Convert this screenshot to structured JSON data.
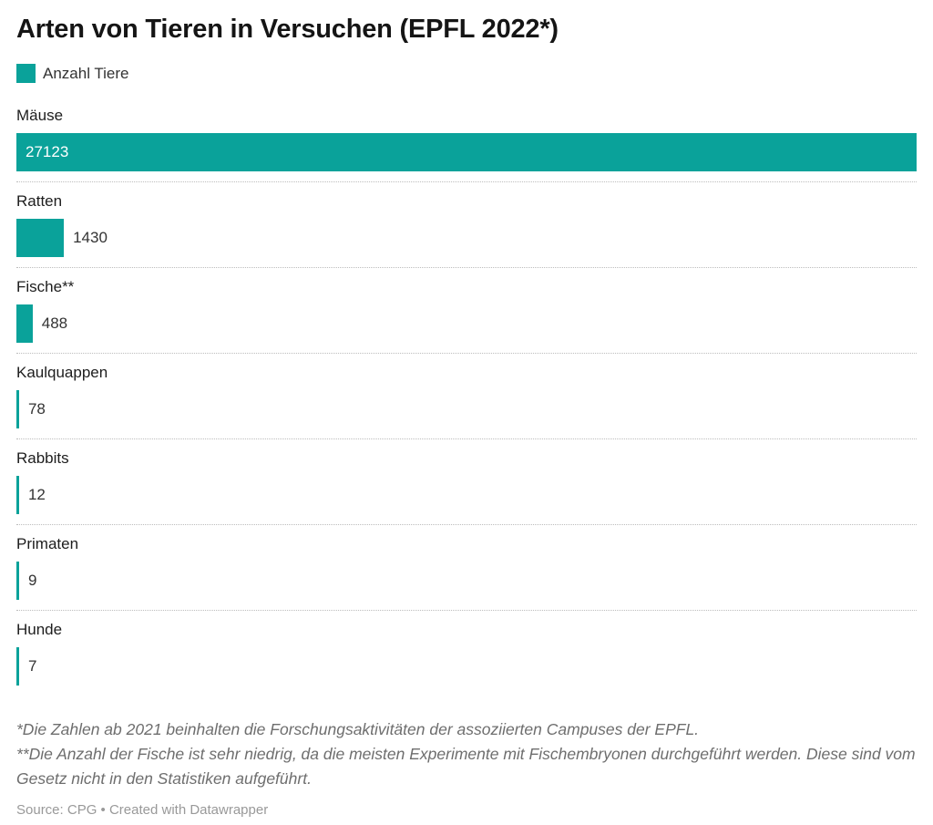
{
  "title": "Arten von Tieren in Versuchen (EPFL 2022*)",
  "legend": {
    "label": "Anzahl Tiere",
    "color": "#0aa29a"
  },
  "chart_data": {
    "type": "bar",
    "orientation": "horizontal",
    "title": "Arten von Tieren in Versuchen (EPFL 2022*)",
    "series_name": "Anzahl Tiere",
    "categories": [
      "Mäuse",
      "Ratten",
      "Fische**",
      "Kaulquappen",
      "Rabbits",
      "Primaten",
      "Hunde"
    ],
    "values": [
      27123,
      1430,
      488,
      78,
      12,
      9,
      7
    ],
    "xlim": [
      0,
      27123
    ],
    "bar_color": "#0aa29a",
    "value_labels_shown": true,
    "grid": false,
    "legend_position": "top-left",
    "row_separator": "dotted"
  },
  "footnotes": [
    "*Die Zahlen ab 2021 beinhalten die Forschungsaktivitäten der assoziierten Campuses der EPFL.",
    "**Die Anzahl der Fische ist sehr niedrig, da die meisten Experimente mit Fischembryonen durchgeführt werden. Diese sind vom Gesetz nicht in den Statistiken aufgeführt."
  ],
  "source": "Source: CPG • Created with Datawrapper"
}
